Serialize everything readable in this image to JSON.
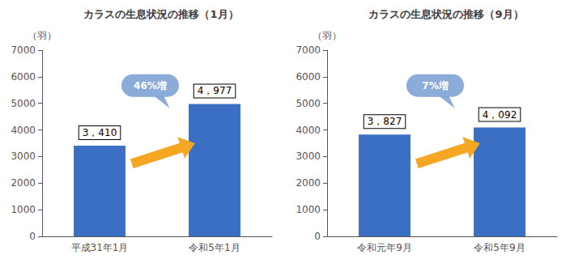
{
  "chart_data": [
    {
      "type": "bar",
      "title": "カラスの生息状況の推移（1月）",
      "ylabel": "（羽）",
      "categories": [
        "平成31年1月",
        "令和5年1月"
      ],
      "values": [
        3410,
        4977
      ],
      "value_labels": [
        "3，410",
        "4，977"
      ],
      "data_labels": true,
      "color": "#3A6FC4",
      "ylim": [
        0,
        7000
      ],
      "yticks": [
        0,
        1000,
        2000,
        3000,
        4000,
        5000,
        6000,
        7000
      ],
      "grid": false,
      "annotation": "46%増"
    },
    {
      "type": "bar",
      "title": "カラスの生息状況の推移（9月）",
      "ylabel": "（羽）",
      "categories": [
        "令和元年9月",
        "令和5年9月"
      ],
      "values": [
        3827,
        4092
      ],
      "value_labels": [
        "3，827",
        "4，092"
      ],
      "data_labels": true,
      "color": "#3A6FC4",
      "ylim": [
        0,
        7000
      ],
      "yticks": [
        0,
        1000,
        2000,
        3000,
        4000,
        5000,
        6000,
        7000
      ],
      "grid": false,
      "annotation": "7%増"
    }
  ]
}
